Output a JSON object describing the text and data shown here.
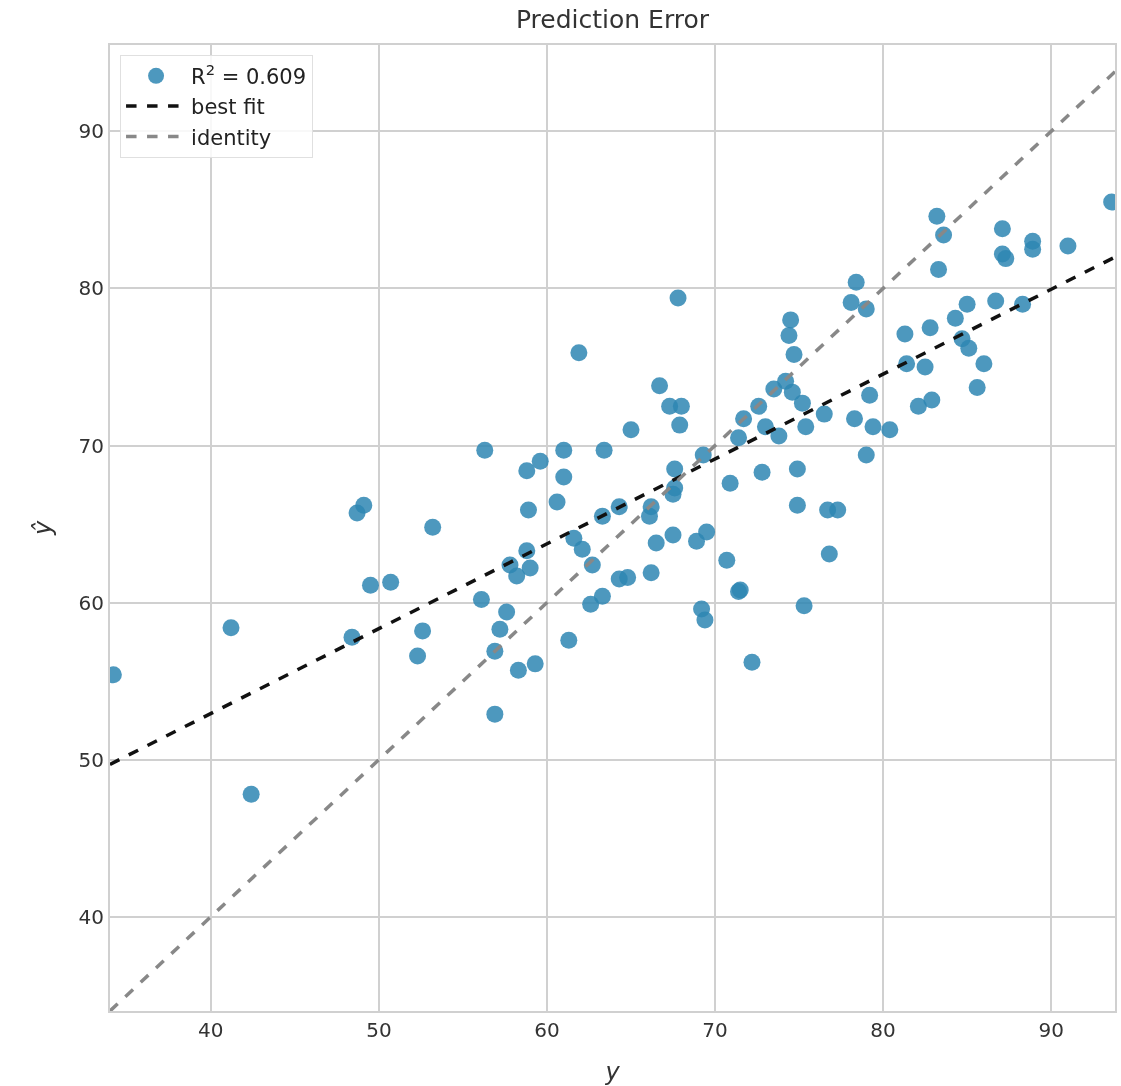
{
  "chart_data": {
    "type": "scatter",
    "title": "Prediction Error",
    "xlabel": "y",
    "ylabel": "ŷ",
    "xlim": [
      34,
      93.8
    ],
    "ylim": [
      34,
      95.5
    ],
    "xticks": [
      40,
      50,
      60,
      70,
      80,
      90
    ],
    "yticks": [
      40,
      50,
      60,
      70,
      80,
      90
    ],
    "grid": true,
    "legend": "top left",
    "series": [
      {
        "name": "R$^{2}$ = 0.609",
        "marker": "circle",
        "color": "#2e86b3",
        "x": [
          34.2,
          41.2,
          42.4,
          48.7,
          49.1,
          53.2,
          49.5,
          50.7,
          48.4,
          52.6,
          52.3,
          56.9,
          56.3,
          58.8,
          59.6,
          61.0,
          61.0,
          58.9,
          60.6,
          61.9,
          63.4,
          63.3,
          58.8,
          57.8,
          58.2,
          59.0,
          61.6,
          62.1,
          62.7,
          56.1,
          57.6,
          57.2,
          56.9,
          58.3,
          59.3,
          61.3,
          62.6,
          63.3,
          67.8,
          66.7,
          67.3,
          68.0,
          67.9,
          65.0,
          64.3,
          67.6,
          67.6,
          67.5,
          66.2,
          66.1,
          69.3,
          71.7,
          71.4,
          72.6,
          73.5,
          74.2,
          74.5,
          74.4,
          74.7,
          74.6,
          75.2,
          73.0,
          73.8,
          75.4,
          76.5,
          78.4,
          78.1,
          79.0,
          79.2,
          78.3,
          79.4,
          80.4,
          79.0,
          81.3,
          82.8,
          81.4,
          82.5,
          84.3,
          85.0,
          86.7,
          88.3,
          84.7,
          85.1,
          86.0,
          85.6,
          82.1,
          82.9,
          66.5,
          67.5,
          68.9,
          69.5,
          70.7,
          70.9,
          72.8,
          74.9,
          74.9,
          76.7,
          77.3,
          76.8,
          71.5,
          71.4,
          75.3,
          72.2,
          69.2,
          69.4,
          64.8,
          66.2,
          64.3,
          83.2,
          83.6,
          83.3,
          87.1,
          87.1,
          87.3,
          88.9,
          88.9,
          91.0,
          93.6
        ],
        "values": [
          55.4,
          58.4,
          47.8,
          65.7,
          66.2,
          64.8,
          61.1,
          61.3,
          57.8,
          58.2,
          56.6,
          52.9,
          69.7,
          68.4,
          69.0,
          69.7,
          68.0,
          65.9,
          66.4,
          75.9,
          69.7,
          65.5,
          63.3,
          62.4,
          61.7,
          62.2,
          64.1,
          63.4,
          62.4,
          60.2,
          59.4,
          58.3,
          56.9,
          55.7,
          56.1,
          57.6,
          59.9,
          60.4,
          79.4,
          73.8,
          72.5,
          72.5,
          71.3,
          71.0,
          66.1,
          68.5,
          67.3,
          66.9,
          66.1,
          65.5,
          69.4,
          71.7,
          70.5,
          72.5,
          73.6,
          74.1,
          78.0,
          77.0,
          75.8,
          73.4,
          72.7,
          71.2,
          70.6,
          71.2,
          72.0,
          80.4,
          79.1,
          78.7,
          73.2,
          71.7,
          71.2,
          71.0,
          69.4,
          77.1,
          77.5,
          75.2,
          75.0,
          78.1,
          79.0,
          79.2,
          79.0,
          76.8,
          76.2,
          75.2,
          73.7,
          72.5,
          72.9,
          63.8,
          64.3,
          63.9,
          64.5,
          62.7,
          67.6,
          68.3,
          68.5,
          66.2,
          65.9,
          65.9,
          63.1,
          60.8,
          60.7,
          59.8,
          56.2,
          59.6,
          58.9,
          61.6,
          61.9,
          61.5,
          84.6,
          83.4,
          81.2,
          83.8,
          82.2,
          81.9,
          83.0,
          82.5,
          82.7,
          85.5
        ]
      },
      {
        "name": "best fit",
        "type": "line",
        "line_style": "dashed",
        "marker": "none",
        "color": "#111111",
        "x": [
          34,
          93.8
        ],
        "values": [
          49.7,
          82.0
        ]
      },
      {
        "name": "identity",
        "type": "line",
        "line_style": "dashed",
        "marker": "none",
        "color": "#888888",
        "x": [
          34,
          93.8
        ],
        "values": [
          34,
          93.8
        ]
      }
    ]
  }
}
